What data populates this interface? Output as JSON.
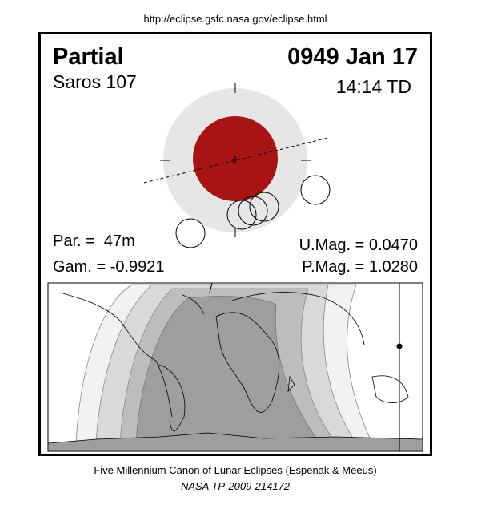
{
  "header": {
    "url": "http://eclipse.gsfc.nasa.gov/eclipse.html"
  },
  "panel": {
    "type_label": "Partial",
    "date": "0949 Jan 17",
    "saros": "Saros 107",
    "time": "14:14 TD",
    "partial_duration": "Par. =  47m",
    "gamma": "Gam. = -0.9921",
    "umbral_mag": "U.Mag. = 0.0470",
    "penumbral_mag": "P.Mag. = 1.0280"
  },
  "footer": {
    "canon": "Five Millennium Canon of Lunar Eclipses (Espenak & Meeus)",
    "publication": "NASA TP-2009-214172"
  }
}
